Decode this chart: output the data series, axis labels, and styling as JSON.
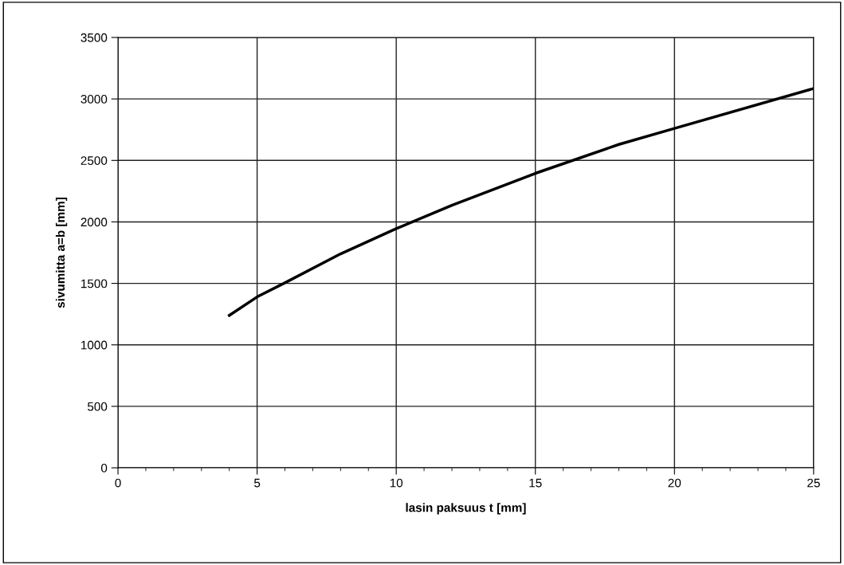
{
  "chart_data": {
    "type": "line",
    "xlabel": "lasin paksuus t [mm]",
    "ylabel": "sivumitta a=b [mm]",
    "x": [
      4,
      5,
      6,
      8,
      10,
      12,
      15,
      18,
      20,
      25
    ],
    "series": [
      {
        "color": "#000000",
        "values": [
          1240,
          1390,
          1505,
          1740,
          1945,
          2135,
          2395,
          2630,
          2760,
          3085
        ]
      }
    ],
    "xlim": [
      0,
      25
    ],
    "xticks": [
      0,
      {
        "value": 1,
        "label": null
      },
      {
        "value": 2,
        "label": null
      },
      {
        "value": 3,
        "label": null
      },
      {
        "value": 4,
        "label": null
      },
      5,
      {
        "value": 6,
        "label": null
      },
      {
        "value": 7,
        "label": null
      },
      {
        "value": 8,
        "label": null
      },
      {
        "value": 9,
        "label": null
      },
      10,
      {
        "value": 11,
        "label": null
      },
      {
        "value": 12,
        "label": null
      },
      {
        "value": 13,
        "label": null
      },
      {
        "value": 14,
        "label": null
      },
      15,
      {
        "value": 16,
        "label": null
      },
      {
        "value": 17,
        "label": null
      },
      {
        "value": 18,
        "label": null
      },
      {
        "value": 19,
        "label": null
      },
      20,
      {
        "value": 21,
        "label": null
      },
      {
        "value": 22,
        "label": null
      },
      {
        "value": 23,
        "label": null
      },
      {
        "value": 24,
        "label": null
      },
      25
    ],
    "ylim": [
      0,
      3500
    ],
    "yticks": [
      0,
      500,
      1000,
      1500,
      2000,
      2500,
      3000,
      3500
    ],
    "grid": true,
    "marker": "none",
    "line_style": "solid"
  }
}
